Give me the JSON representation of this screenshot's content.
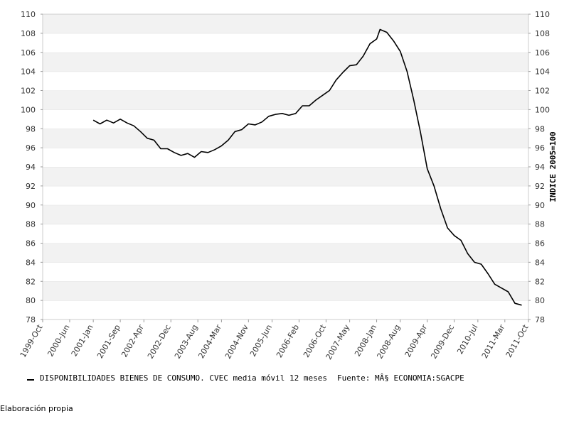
{
  "chart_data": {
    "type": "line",
    "ylabel": "INDICE 2005=100",
    "ylim": [
      78,
      110
    ],
    "yticks": [
      78,
      80,
      82,
      84,
      86,
      88,
      90,
      92,
      94,
      96,
      98,
      100,
      102,
      104,
      106,
      108,
      110
    ],
    "xticks": [
      "1999-Oct",
      "2000-Jun",
      "2001-Jan",
      "2001-Sep",
      "2002-Apr",
      "2002-Dec",
      "2003-Aug",
      "2004-Mar",
      "2004-Nov",
      "2005-Jun",
      "2006-Feb",
      "2006-Oct",
      "2007-May",
      "2008-Jan",
      "2008-Aug",
      "2009-Apr",
      "2009-Dec",
      "2010-Jul",
      "2011-Mar",
      "2011-Oct"
    ],
    "grid": "horizontal alternating bands",
    "series": [
      {
        "name": "DISPONIBILIDADES BIENES DE CONSUMO. CVEC media móvil 12 meses",
        "color": "#000000",
        "points": [
          [
            "2001-01",
            98.9
          ],
          [
            "2001-03",
            98.5
          ],
          [
            "2001-05",
            98.9
          ],
          [
            "2001-07",
            98.6
          ],
          [
            "2001-09",
            99.0
          ],
          [
            "2001-11",
            98.6
          ],
          [
            "2002-01",
            98.3
          ],
          [
            "2002-03",
            97.7
          ],
          [
            "2002-05",
            97.0
          ],
          [
            "2002-07",
            96.8
          ],
          [
            "2002-09",
            95.9
          ],
          [
            "2002-11",
            95.9
          ],
          [
            "2003-01",
            95.5
          ],
          [
            "2003-03",
            95.2
          ],
          [
            "2003-05",
            95.4
          ],
          [
            "2003-07",
            95.0
          ],
          [
            "2003-09",
            95.6
          ],
          [
            "2003-11",
            95.5
          ],
          [
            "2004-01",
            95.8
          ],
          [
            "2004-03",
            96.2
          ],
          [
            "2004-05",
            96.8
          ],
          [
            "2004-07",
            97.7
          ],
          [
            "2004-09",
            97.9
          ],
          [
            "2004-11",
            98.5
          ],
          [
            "2005-01",
            98.4
          ],
          [
            "2005-03",
            98.7
          ],
          [
            "2005-05",
            99.3
          ],
          [
            "2005-07",
            99.5
          ],
          [
            "2005-09",
            99.6
          ],
          [
            "2005-11",
            99.4
          ],
          [
            "2006-01",
            99.6
          ],
          [
            "2006-03",
            100.4
          ],
          [
            "2006-05",
            100.4
          ],
          [
            "2006-07",
            101.0
          ],
          [
            "2006-09",
            101.5
          ],
          [
            "2006-11",
            102.0
          ],
          [
            "2007-01",
            103.1
          ],
          [
            "2007-03",
            103.9
          ],
          [
            "2007-05",
            104.6
          ],
          [
            "2007-07",
            104.7
          ],
          [
            "2007-09",
            105.6
          ],
          [
            "2007-11",
            106.9
          ],
          [
            "2008-01",
            107.4
          ],
          [
            "2008-02",
            108.4
          ],
          [
            "2008-04",
            108.1
          ],
          [
            "2008-06",
            107.2
          ],
          [
            "2008-08",
            106.1
          ],
          [
            "2008-10",
            104.0
          ],
          [
            "2008-12",
            101.0
          ],
          [
            "2009-02",
            97.6
          ],
          [
            "2009-04",
            93.8
          ],
          [
            "2009-06",
            92.0
          ],
          [
            "2009-08",
            89.6
          ],
          [
            "2009-10",
            87.6
          ],
          [
            "2009-12",
            86.8
          ],
          [
            "2010-02",
            86.3
          ],
          [
            "2010-04",
            84.9
          ],
          [
            "2010-06",
            84.0
          ],
          [
            "2010-08",
            83.8
          ],
          [
            "2010-10",
            82.8
          ],
          [
            "2010-12",
            81.7
          ],
          [
            "2011-02",
            81.3
          ],
          [
            "2011-04",
            80.9
          ],
          [
            "2011-06",
            79.7
          ],
          [
            "2011-08",
            79.5
          ]
        ]
      }
    ]
  },
  "legend": {
    "label": "DISPONIBILIDADES BIENES DE CONSUMO. CVEC media móvil 12 meses",
    "source": "Fuente: MÂ§ ECONOMIA:SGACPE"
  },
  "footer": "Elaboración propia"
}
